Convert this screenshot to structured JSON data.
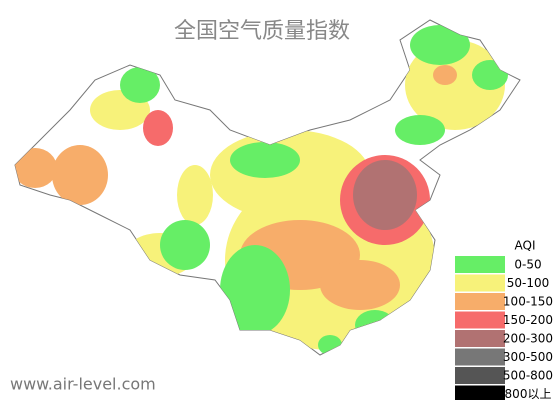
{
  "title": "全国空气质量指数",
  "watermark": "www.air-level.com",
  "legend": {
    "title": "AQI",
    "items": [
      {
        "label": "0-50",
        "color": "#66ee66"
      },
      {
        "label": "50-100",
        "color": "#f7f27a"
      },
      {
        "label": "100-150",
        "color": "#f7ad6a"
      },
      {
        "label": "150-200",
        "color": "#f66b6b"
      },
      {
        "label": "200-300",
        "color": "#b17272"
      },
      {
        "label": "300-500",
        "color": "#777777"
      },
      {
        "label": "500-800",
        "color": "#555555"
      },
      {
        "label": "800以上",
        "color": "#000000"
      }
    ]
  }
}
